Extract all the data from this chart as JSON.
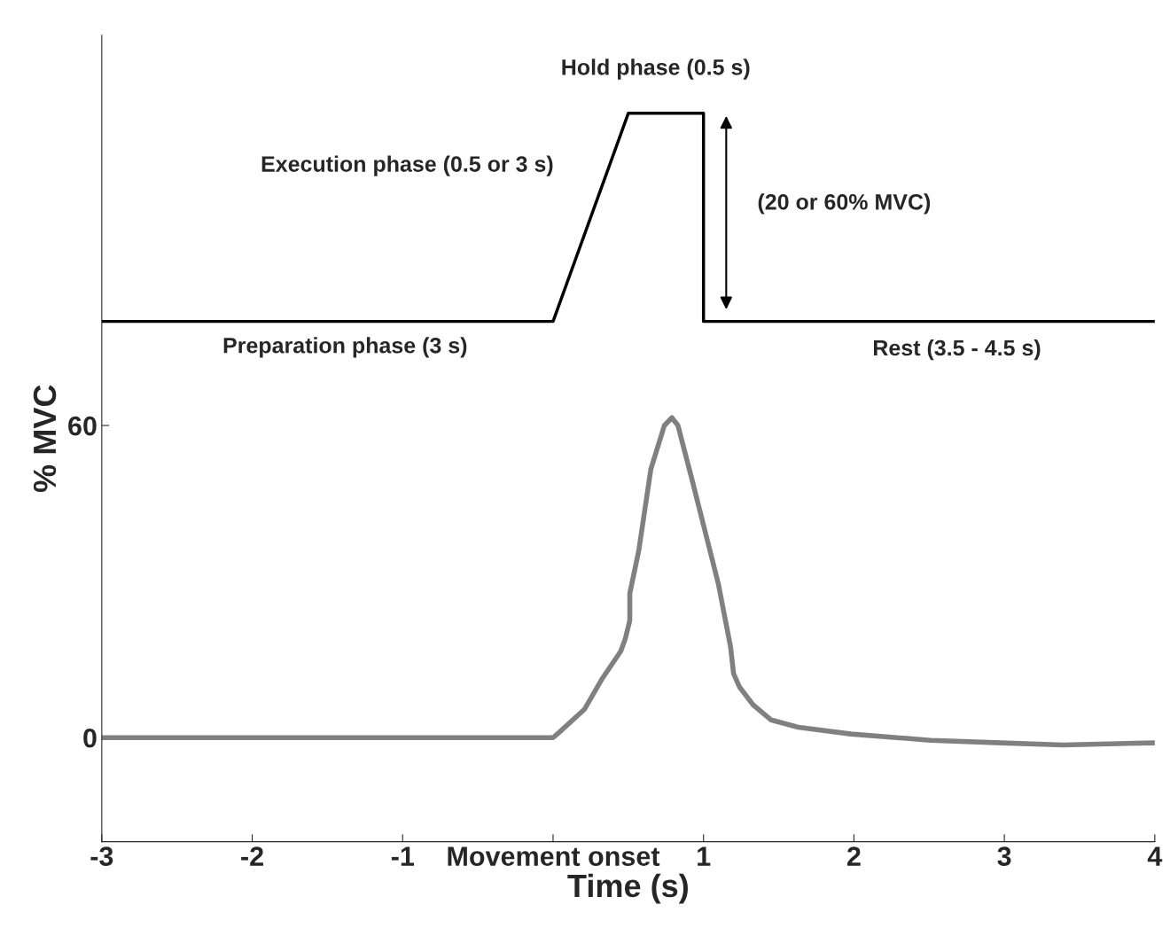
{
  "chart_data": {
    "type": "line",
    "xlabel": "Time (s)",
    "ylabel": "% MVC",
    "xlim": [
      -3,
      4
    ],
    "ylim": [
      -20,
      135
    ],
    "xticks": [
      -3,
      -2,
      -1,
      {
        "value": 0,
        "label": "Movement onset"
      },
      1,
      2,
      3,
      4
    ],
    "yticks": [
      0,
      60
    ],
    "grid": false,
    "line_style": "solid",
    "marker": "none",
    "series": [
      {
        "color": "#000000",
        "x": [
          -3,
          0,
          0.5,
          1,
          1,
          4
        ],
        "values": [
          80,
          80,
          120,
          120,
          80,
          80
        ]
      },
      {
        "color": "#808080",
        "x": [
          -3,
          -2.5,
          -2,
          -1.5,
          -1,
          -0.5,
          0,
          0.04,
          0.21,
          0.33,
          0.45,
          0.48,
          0.51,
          0.51,
          0.57,
          0.65,
          0.74,
          0.79,
          0.83,
          0.92,
          1.01,
          1.1,
          1.18,
          1.2,
          1.24,
          1.33,
          1.45,
          1.63,
          1.98,
          2.51,
          2.98,
          3.39,
          4
        ],
        "values": [
          0,
          0,
          0,
          0,
          0,
          0,
          0,
          1,
          5.5,
          11.5,
          16.6,
          19,
          22.5,
          27.7,
          36,
          51.6,
          60,
          61.5,
          60,
          50,
          39.7,
          29.4,
          17.4,
          12.3,
          9.7,
          6.3,
          3.4,
          2,
          0.7,
          -0.5,
          -1,
          -1.4,
          -1
        ]
      }
    ],
    "annotations": [
      "Hold phase (0.5 s)",
      "Execution phase (0.5 or 3 s)",
      "(20 or 60% MVC)",
      "Preparation phase (3 s)",
      "Rest (3.5 - 4.5 s)"
    ]
  }
}
